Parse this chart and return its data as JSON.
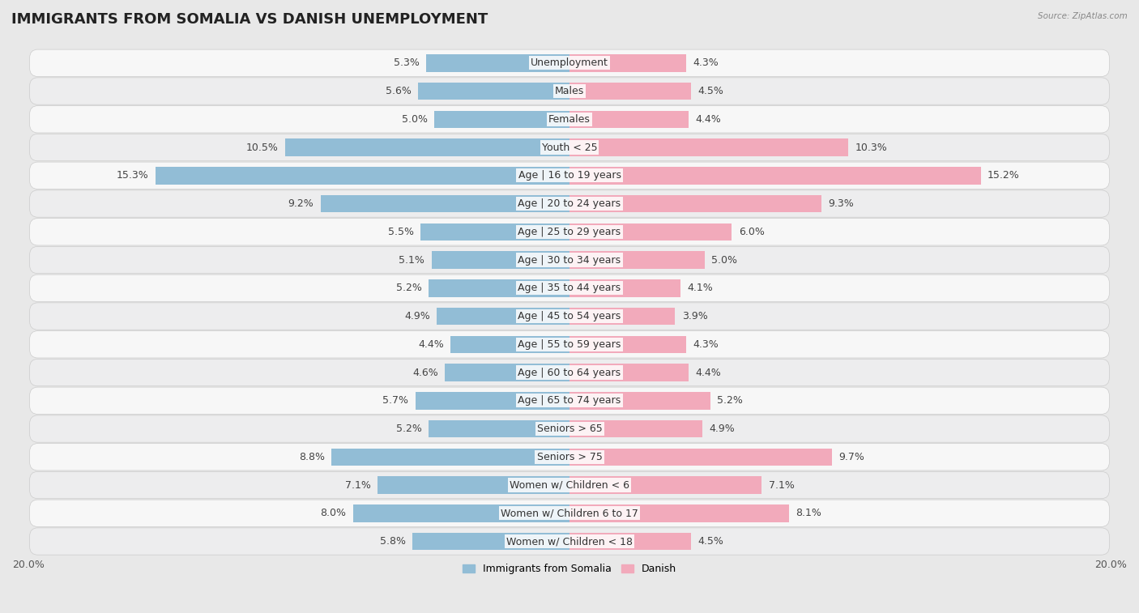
{
  "title": "IMMIGRANTS FROM SOMALIA VS DANISH UNEMPLOYMENT",
  "source": "Source: ZipAtlas.com",
  "categories": [
    "Unemployment",
    "Males",
    "Females",
    "Youth < 25",
    "Age | 16 to 19 years",
    "Age | 20 to 24 years",
    "Age | 25 to 29 years",
    "Age | 30 to 34 years",
    "Age | 35 to 44 years",
    "Age | 45 to 54 years",
    "Age | 55 to 59 years",
    "Age | 60 to 64 years",
    "Age | 65 to 74 years",
    "Seniors > 65",
    "Seniors > 75",
    "Women w/ Children < 6",
    "Women w/ Children 6 to 17",
    "Women w/ Children < 18"
  ],
  "somalia_values": [
    5.3,
    5.6,
    5.0,
    10.5,
    15.3,
    9.2,
    5.5,
    5.1,
    5.2,
    4.9,
    4.4,
    4.6,
    5.7,
    5.2,
    8.8,
    7.1,
    8.0,
    5.8
  ],
  "danish_values": [
    4.3,
    4.5,
    4.4,
    10.3,
    15.2,
    9.3,
    6.0,
    5.0,
    4.1,
    3.9,
    4.3,
    4.4,
    5.2,
    4.9,
    9.7,
    7.1,
    8.1,
    4.5
  ],
  "somalia_color": "#92BDD6",
  "danish_color": "#F2AABB",
  "somalia_label": "Immigrants from Somalia",
  "danish_label": "Danish",
  "axis_limit": 20.0,
  "page_bg": "#e8e8e8",
  "row_bg_white": "#f7f7f7",
  "row_bg_gray": "#ededee",
  "title_fontsize": 13,
  "value_fontsize": 9,
  "cat_fontsize": 9
}
